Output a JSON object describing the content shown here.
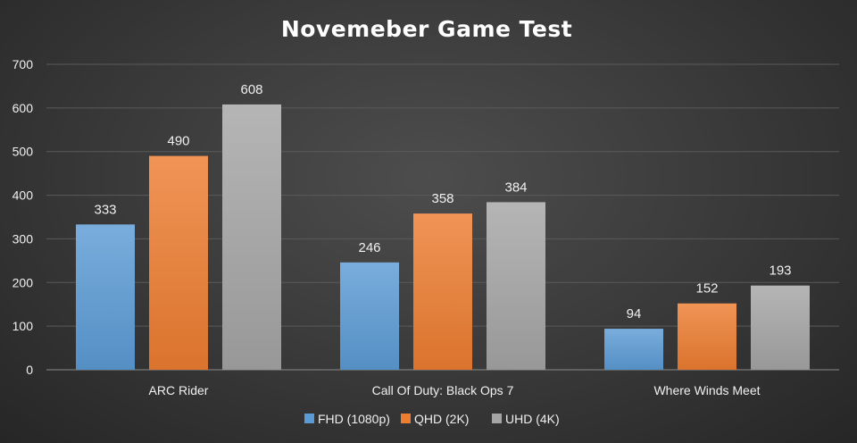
{
  "chart_data": {
    "type": "bar",
    "title": "Novemeber Game Test",
    "xlabel": "",
    "ylabel": "",
    "categories": [
      "ARC Rider",
      "Call Of Duty: Black Ops 7",
      "Where Winds Meet"
    ],
    "series": [
      {
        "name": "FHD (1080p)",
        "values": [
          333,
          246,
          94
        ],
        "color": "#5b9bd5"
      },
      {
        "name": "QHD (2K)",
        "values": [
          490,
          358,
          152
        ],
        "color": "#ed7d31"
      },
      {
        "name": "UHD (4K)",
        "values": [
          608,
          384,
          193
        ],
        "color": "#a5a5a5"
      }
    ],
    "ylim": [
      0,
      700
    ],
    "yticks": [
      "0",
      "100",
      "200",
      "300",
      "400",
      "500",
      "600",
      "700"
    ],
    "grid": true,
    "legend": "bottom",
    "data_labels": true
  }
}
